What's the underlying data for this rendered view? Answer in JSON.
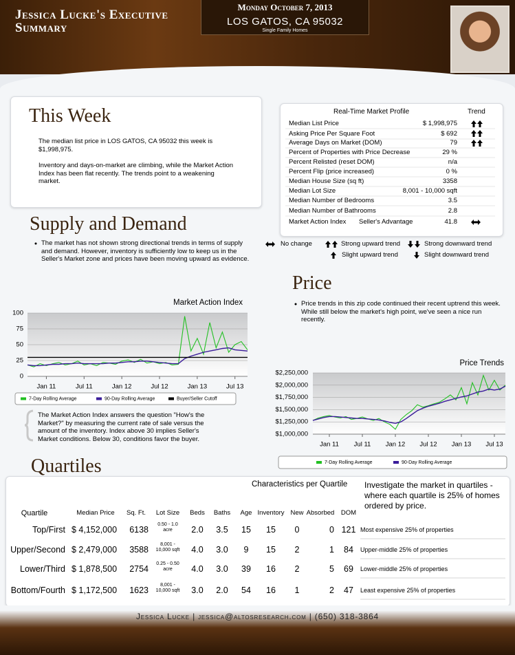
{
  "header": {
    "title": "Jessica Lucke's Executive Summary",
    "date": "Monday October 7, 2013",
    "location": "LOS GATOS, CA 95032",
    "subtitle": "Single Family Homes"
  },
  "this_week": {
    "heading": "This Week",
    "paragraphs": [
      "The median list price in LOS GATOS, CA 95032 this week is $1,998,975.",
      "Inventory and days-on-market are climbing, while the Market Action Index has been flat recently. The trends point to a weakening market."
    ]
  },
  "profile": {
    "title": "Real-Time Market Profile",
    "trend_header": "Trend",
    "rows": [
      [
        "Median List Price",
        "$ 1,998,975"
      ],
      [
        "Asking Price Per Square Foot",
        "$ 692"
      ],
      [
        "Average Days on Market (DOM)",
        "79"
      ],
      [
        "Percent of Properties with Price Decrease",
        "29 %"
      ],
      [
        "Percent Relisted (reset DOM)",
        "n/a"
      ],
      [
        "Percent Flip (price increased)",
        "0 %"
      ],
      [
        "Median House Size (sq ft)",
        "3358"
      ],
      [
        "Median Lot Size",
        "8,001 - 10,000 sqft"
      ],
      [
        "Median Number of Bedrooms",
        "3.5"
      ],
      [
        "Median Number of Bathrooms",
        "2.8"
      ]
    ],
    "mai": {
      "label": "Market Action Index",
      "note": "Seller's Advantage",
      "value": "41.8"
    }
  },
  "trend_legend": [
    "No change",
    "Strong upward trend",
    "Strong downward trend",
    "Slight upward trend",
    "Slight downward trend"
  ],
  "supply": {
    "heading": "Supply and Demand",
    "text": "The market has not shown strong directional trends in terms of supply and demand.  However, inventory is sufficiently low to keep us in the Seller's Market zone and prices have been moving upward as evidence."
  },
  "price": {
    "heading": "Price",
    "text": "Price trends in this zip code continued their recent uptrend this week. While still below the market's high point, we've seen a nice run recently."
  },
  "mai_note": "The Market Action Index answers the question \"How's the Market?\" by measuring the current rate of sale versus the amount of the inventory.  Index above 30 implies Seller's Market conditions. Below 30, conditions favor the buyer.",
  "chart_data": [
    {
      "type": "line",
      "title": "Market Action Index",
      "categories": [
        null,
        null,
        null,
        "Jan 11",
        null,
        null,
        null,
        null,
        null,
        "Jul 11",
        null,
        null,
        null,
        null,
        null,
        "Jan 12",
        null,
        null,
        null,
        null,
        null,
        "Jul 12",
        null,
        null,
        null,
        null,
        null,
        "Jan 13",
        null,
        null,
        null,
        null,
        null,
        "Jul 13",
        null,
        null
      ],
      "ylim": [
        0,
        100
      ],
      "yticks": [
        0,
        25,
        50,
        75,
        100
      ],
      "grid": true,
      "series": [
        {
          "name": "7-Day Rolling Average",
          "color": "#22c022",
          "values": [
            18,
            15,
            20,
            17,
            20,
            22,
            18,
            20,
            24,
            18,
            20,
            17,
            22,
            21,
            19,
            24,
            26,
            22,
            27,
            21,
            23,
            20,
            22,
            18,
            19,
            95,
            40,
            60,
            35,
            85,
            45,
            70,
            38,
            50,
            55,
            42
          ]
        },
        {
          "name": "90-Day Rolling Average",
          "color": "#3a1c9a",
          "values": [
            18,
            17,
            17,
            18,
            19,
            19,
            20,
            20,
            21,
            20,
            20,
            20,
            20,
            21,
            21,
            22,
            23,
            23,
            24,
            24,
            23,
            22,
            21,
            20,
            20,
            28,
            32,
            35,
            38,
            40,
            42,
            44,
            45,
            42,
            41,
            40
          ]
        },
        {
          "name": "Buyer/Seller Cutoff",
          "color": "#000000",
          "values": [
            30,
            30,
            30,
            30,
            30,
            30,
            30,
            30,
            30,
            30,
            30,
            30,
            30,
            30,
            30,
            30,
            30,
            30,
            30,
            30,
            30,
            30,
            30,
            30,
            30,
            30,
            30,
            30,
            30,
            30,
            30,
            30,
            30,
            30,
            30,
            30
          ]
        }
      ]
    },
    {
      "type": "line",
      "title": "Price Trends",
      "categories": [
        null,
        null,
        null,
        "Jan 11",
        null,
        null,
        null,
        null,
        null,
        "Jul 11",
        null,
        null,
        null,
        null,
        null,
        "Jan 12",
        null,
        null,
        null,
        null,
        null,
        "Jul 12",
        null,
        null,
        null,
        null,
        null,
        "Jan 13",
        null,
        null,
        null,
        null,
        null,
        "Jul 13",
        null,
        null
      ],
      "ylim": [
        1000000,
        2250000
      ],
      "yticks": [
        {
          "value": 1000000,
          "label": "$1,000,000"
        },
        {
          "value": 1250000,
          "label": "$1,250,000"
        },
        {
          "value": 1500000,
          "label": "$1,500,000"
        },
        {
          "value": 1750000,
          "label": "$1,750,000"
        },
        {
          "value": 2000000,
          "label": "$2,000,000"
        },
        {
          "value": 2250000,
          "label": "$2,250,000"
        }
      ],
      "grid": true,
      "series": [
        {
          "name": "7-Day Rolling Average",
          "color": "#22c022",
          "values": [
            1280000,
            1330000,
            1360000,
            1380000,
            1350000,
            1330000,
            1360000,
            1300000,
            1320000,
            1350000,
            1310000,
            1280000,
            1320000,
            1250000,
            1200000,
            1100000,
            1300000,
            1400000,
            1480000,
            1600000,
            1550000,
            1580000,
            1620000,
            1650000,
            1720000,
            1800000,
            1700000,
            1950000,
            1620000,
            2050000,
            1800000,
            2200000,
            1900000,
            2100000,
            1900000,
            2000000
          ]
        },
        {
          "name": "90-Day Rolling Average",
          "color": "#3a1c9a",
          "values": [
            1280000,
            1310000,
            1340000,
            1360000,
            1360000,
            1350000,
            1340000,
            1330000,
            1320000,
            1320000,
            1310000,
            1300000,
            1290000,
            1270000,
            1240000,
            1220000,
            1250000,
            1320000,
            1400000,
            1480000,
            1530000,
            1570000,
            1600000,
            1630000,
            1670000,
            1700000,
            1730000,
            1760000,
            1780000,
            1820000,
            1860000,
            1880000,
            1920000,
            1900000,
            1920000,
            1980000
          ]
        }
      ]
    }
  ],
  "quartiles": {
    "heading": "Quartiles",
    "table_title": "Characteristics per Quartile",
    "intro": "Investigate the market in quartiles - where each quartile is 25% of homes ordered by price.",
    "columns": [
      "Quartile",
      "Median Price",
      "Sq. Ft.",
      "Lot Size",
      "Beds",
      "Baths",
      "Age",
      "Inventory",
      "New",
      "Absorbed",
      "DOM"
    ],
    "rows": [
      [
        "Top/First",
        "$ 4,152,000",
        "6138",
        "0.50 - 1.0 acre",
        "2.0",
        "3.5",
        "15",
        "15",
        "0",
        "0",
        "121",
        "Most expensive 25% of properties"
      ],
      [
        "Upper/Second",
        "$ 2,479,000",
        "3588",
        "8,001 - 10,000 sqft",
        "4.0",
        "3.0",
        "9",
        "15",
        "2",
        "1",
        "84",
        "Upper-middle 25% of properties"
      ],
      [
        "Lower/Third",
        "$ 1,878,500",
        "2754",
        "0.25 - 0.50 acre",
        "4.0",
        "3.0",
        "39",
        "16",
        "2",
        "5",
        "69",
        "Lower-middle 25% of properties"
      ],
      [
        "Bottom/Fourth",
        "$ 1,172,500",
        "1623",
        "8,001 - 10,000 sqft",
        "3.0",
        "2.0",
        "54",
        "16",
        "1",
        "2",
        "47",
        "Least expensive 25% of properties"
      ]
    ]
  },
  "footer": "Jessica Lucke | jessica@altosresearch.com | (650) 318-3864"
}
